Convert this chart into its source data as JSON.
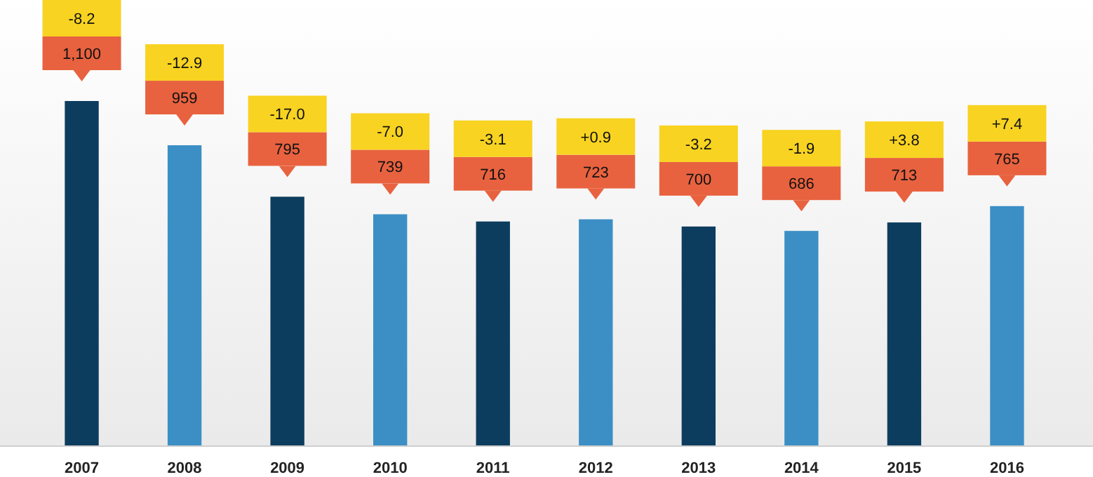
{
  "chart_data": {
    "type": "bar",
    "categories": [
      "2007",
      "2008",
      "2009",
      "2010",
      "2011",
      "2012",
      "2013",
      "2014",
      "2015",
      "2016"
    ],
    "values": [
      1100,
      959,
      795,
      739,
      716,
      723,
      700,
      686,
      713,
      765
    ],
    "colors": [
      "#0d3d5e",
      "#3b8fc5",
      "#0d3d5e",
      "#3b8fc5",
      "#0d3d5e",
      "#3b8fc5",
      "#0d3d5e",
      "#3b8fc5",
      "#0d3d5e",
      "#3b8fc5"
    ],
    "value_labels": [
      "1,100",
      "959",
      "795",
      "739",
      "716",
      "723",
      "700",
      "686",
      "713",
      "765"
    ],
    "tick_labels": "x",
    "annotations": [
      "-8.2",
      "-12.9",
      "-17.0",
      "-7.0",
      "-3.1",
      "+0.9",
      "-3.2",
      "-1.9",
      "+3.8",
      "+7.4"
    ]
  }
}
